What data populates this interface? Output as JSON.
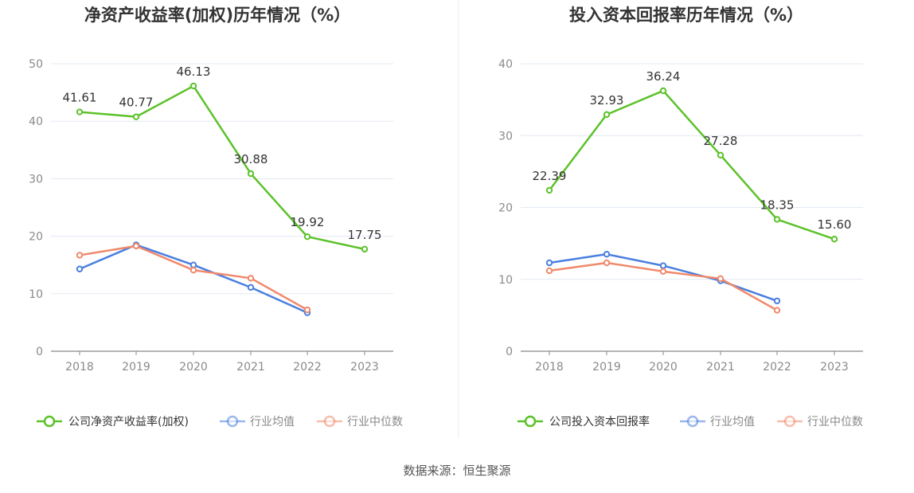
{
  "chart_data": [
    {
      "type": "line",
      "title": "净资产收益率(加权)历年情况（%）",
      "categories": [
        "2018",
        "2019",
        "2020",
        "2021",
        "2022",
        "2023"
      ],
      "yticks": [
        "0",
        "10",
        "20",
        "30",
        "40",
        "50"
      ],
      "ylim": [
        0,
        50
      ],
      "grid": true,
      "legend_position": "bottom",
      "series": [
        {
          "name": "公司净资产收益率(加权)",
          "color": "#5cc22a",
          "values": [
            41.61,
            40.77,
            46.13,
            30.88,
            19.92,
            17.75
          ],
          "labels": [
            "41.61",
            "40.77",
            "46.13",
            "30.88",
            "19.92",
            "17.75"
          ]
        },
        {
          "name": "行业均值",
          "color": "#4a7fe0",
          "values": [
            14.3,
            18.5,
            15.0,
            11.1,
            6.7,
            null
          ]
        },
        {
          "name": "行业中位数",
          "color": "#f0896b",
          "values": [
            16.7,
            18.3,
            14.1,
            12.7,
            7.2,
            null
          ]
        }
      ]
    },
    {
      "type": "line",
      "title": "投入资本回报率历年情况（%）",
      "categories": [
        "2018",
        "2019",
        "2020",
        "2021",
        "2022",
        "2023"
      ],
      "yticks": [
        "0",
        "10",
        "20",
        "30",
        "40"
      ],
      "ylim": [
        0,
        40
      ],
      "grid": true,
      "legend_position": "bottom",
      "series": [
        {
          "name": "公司投入资本回报率",
          "color": "#5cc22a",
          "values": [
            22.39,
            32.93,
            36.24,
            27.28,
            18.35,
            15.6
          ],
          "labels": [
            "22.39",
            "32.93",
            "36.24",
            "27.28",
            "18.35",
            "15.60"
          ]
        },
        {
          "name": "行业均值",
          "color": "#4a7fe0",
          "values": [
            12.3,
            13.5,
            11.9,
            9.8,
            7.0,
            null
          ]
        },
        {
          "name": "行业中位数",
          "color": "#f0896b",
          "values": [
            11.2,
            12.3,
            11.1,
            10.1,
            5.7,
            null
          ]
        }
      ]
    }
  ],
  "source_text": "数据来源：恒生聚源"
}
